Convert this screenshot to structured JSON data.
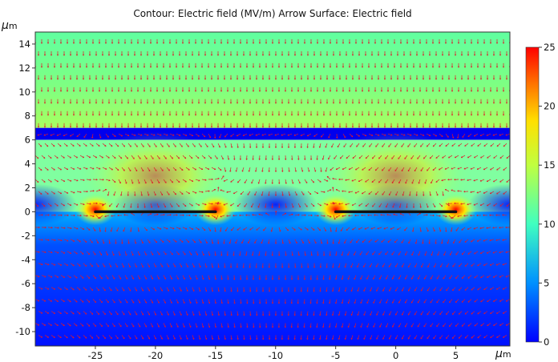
{
  "chart_data": {
    "type": "heatmap",
    "title": "Contour: Electric field (MV/m)  Arrow Surface: Electric field",
    "xlabel": "μm",
    "ylabel": "μm",
    "xlim": [
      -30,
      9.5
    ],
    "ylim": [
      -11.2,
      15.0
    ],
    "x_ticks": [
      "-25",
      "-20",
      "-15",
      "-10",
      "-5",
      "0",
      "5"
    ],
    "x_tick_values": [
      -25,
      -20,
      -15,
      -10,
      -5,
      0,
      5
    ],
    "y_ticks": [
      "14",
      "12",
      "10",
      "8",
      "6",
      "4",
      "2",
      "0",
      "-2",
      "-4",
      "-6",
      "-8",
      "-10"
    ],
    "y_tick_values": [
      14,
      12,
      10,
      8,
      6,
      4,
      2,
      0,
      -2,
      -4,
      -6,
      -8,
      -10
    ],
    "colorbar": {
      "range": [
        0,
        25
      ],
      "ticks": [
        "25",
        "20",
        "15",
        "10",
        "5",
        "0"
      ],
      "tick_values": [
        25,
        20,
        15,
        10,
        5,
        0
      ],
      "colormap": "rainbow"
    },
    "regions": [
      {
        "y": [
          7.0,
          15.0
        ],
        "field_MV_per_m": 10.5
      },
      {
        "y": [
          6.0,
          7.0
        ],
        "field_MV_per_m": 0.5
      },
      {
        "y": [
          -11.2,
          6.0
        ],
        "field_MV_per_m": "varies, 2 to 25"
      }
    ],
    "electrodes": [
      {
        "x": [
          -25,
          -15
        ],
        "y": 0
      },
      {
        "x": [
          -5,
          5
        ],
        "y": 0
      }
    ],
    "arrow_color": "#e0182a",
    "grid": false
  }
}
